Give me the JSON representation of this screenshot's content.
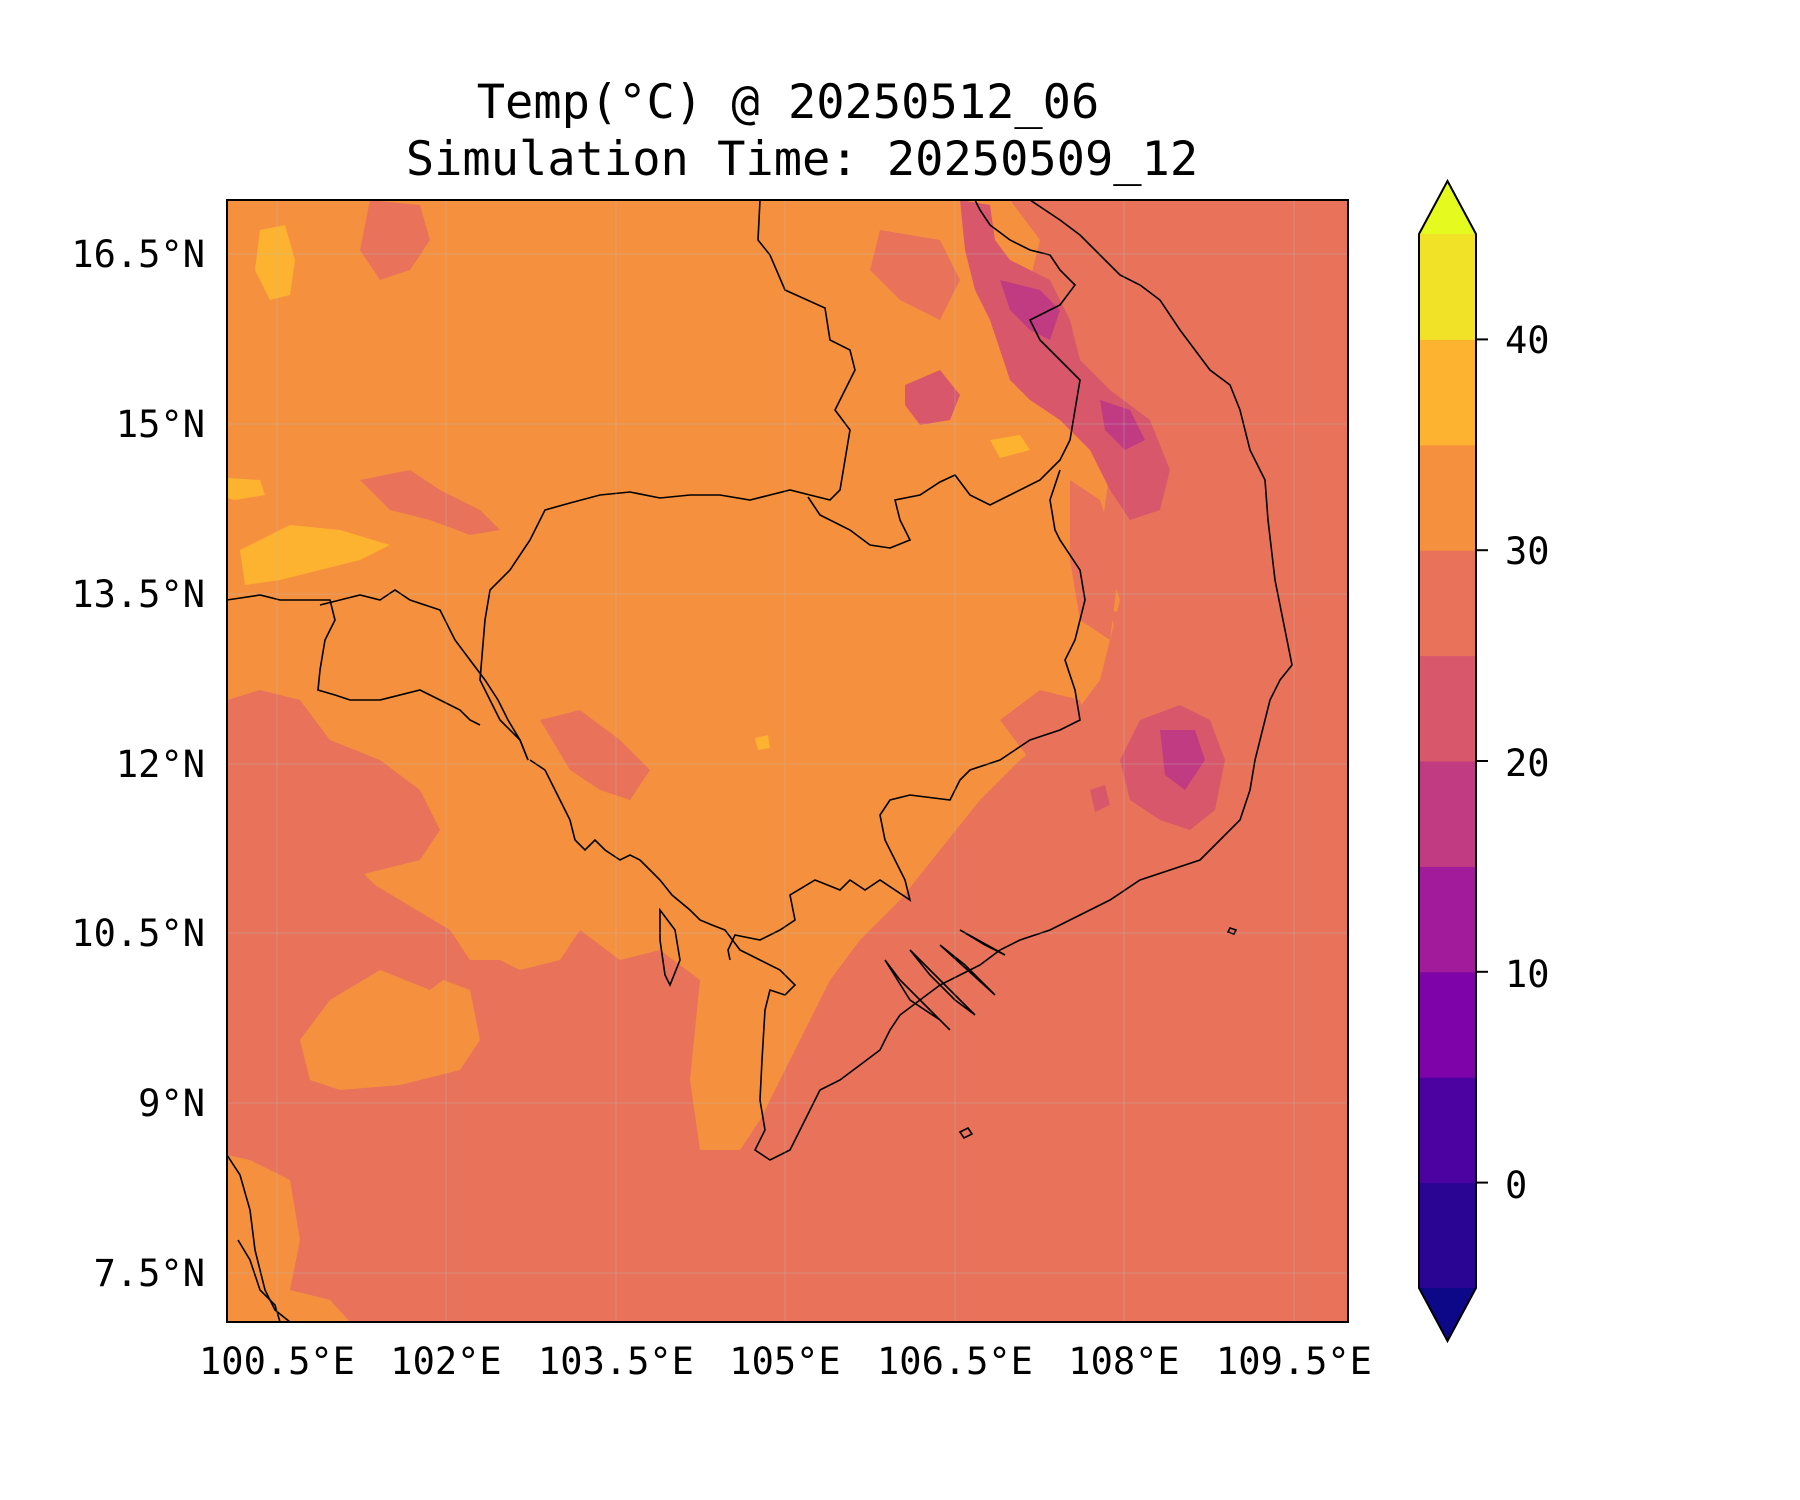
{
  "title": {
    "line1": "Temp(°C) @ 20250512_06",
    "line2": "Simulation Time: 20250509_12"
  },
  "map": {
    "lon_range": [
      100.0,
      110.0
    ],
    "lat_range": [
      7.0,
      17.0
    ],
    "x_ticks": [
      "100.5°E",
      "102°E",
      "103.5°E",
      "105°E",
      "106.5°E",
      "108°E",
      "109.5°E"
    ],
    "y_ticks": [
      "16.5°N",
      "15°N",
      "13.5°N",
      "12°N",
      "10.5°N",
      "9°N",
      "7.5°N"
    ],
    "gridlines": true,
    "background_color": "#e8735a"
  },
  "colorbar": {
    "ticks": [
      "40",
      "30",
      "20",
      "10",
      "0"
    ],
    "levels": [
      -5,
      0,
      5,
      10,
      15,
      20,
      25,
      30,
      35,
      40,
      45
    ],
    "extend": "both",
    "colors": [
      "#0d0887",
      "#2a0593",
      "#4c02a1",
      "#7e03a8",
      "#a11b9b",
      "#c13b82",
      "#d8576b",
      "#e8735a",
      "#f5913e",
      "#fdb32f",
      "#f1e127",
      "#e5fa1f"
    ],
    "colormap": "plasma"
  }
}
